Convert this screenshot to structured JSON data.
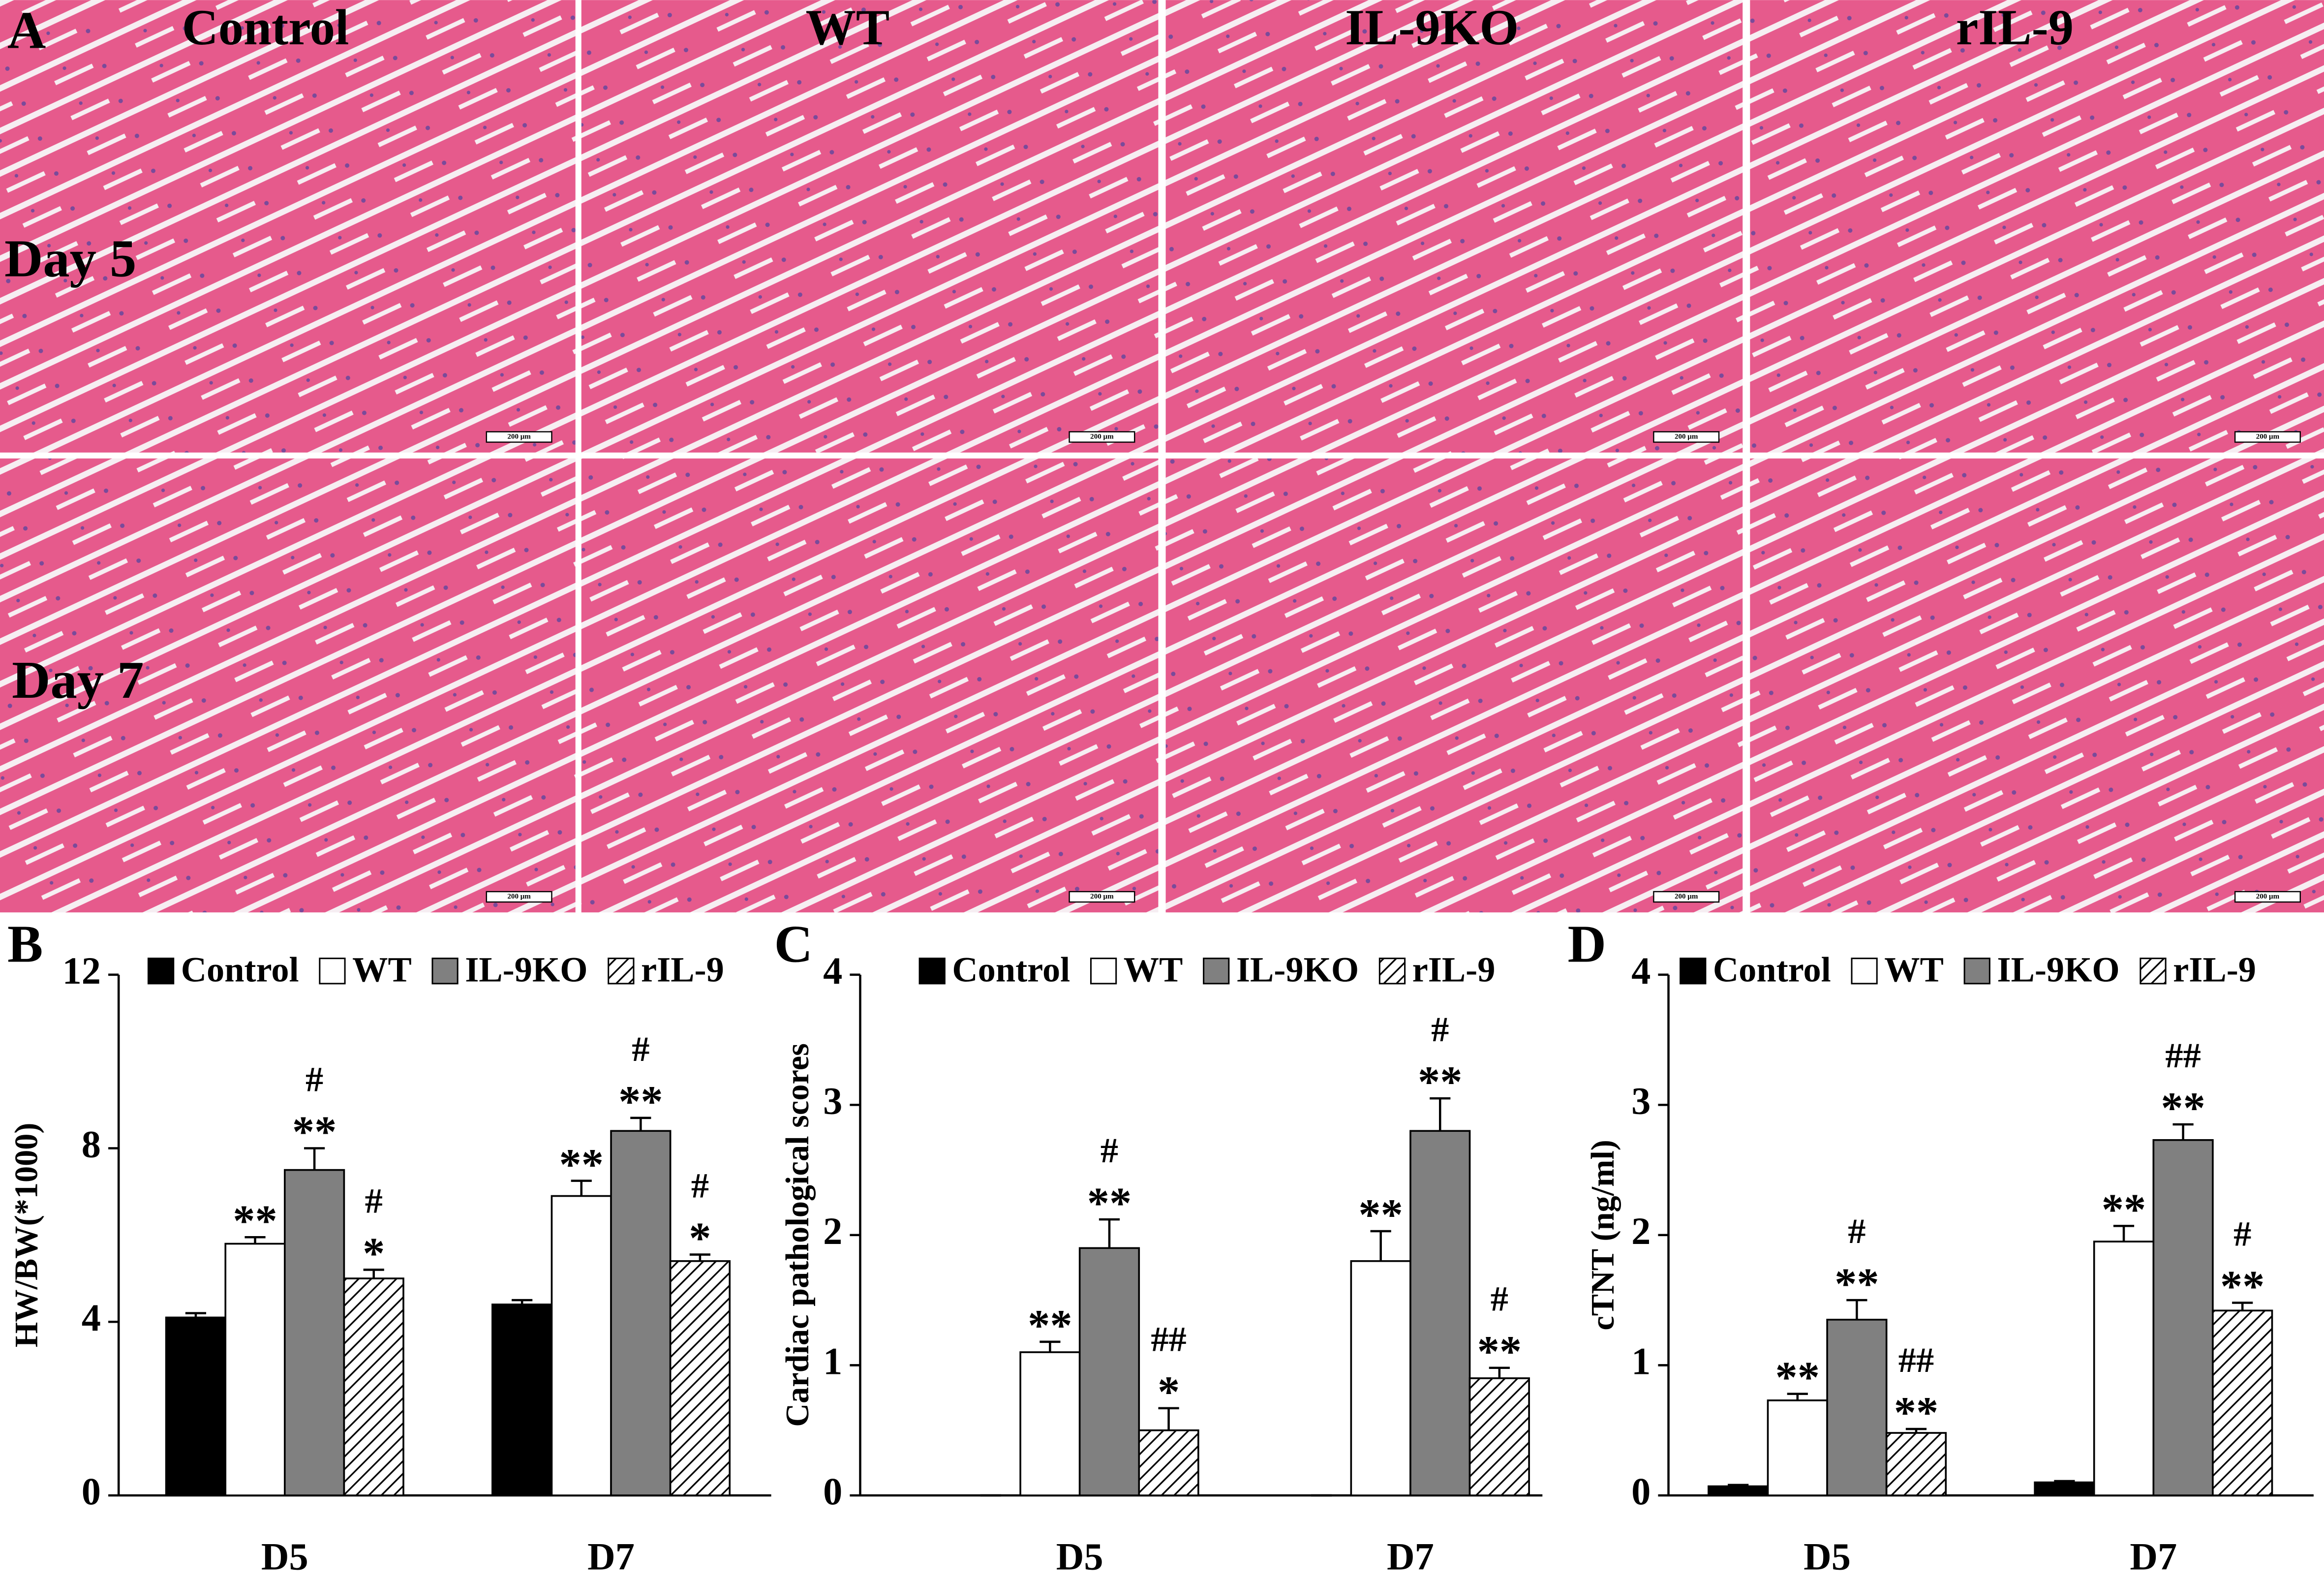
{
  "panel_a": {
    "label": "A",
    "columns": [
      "Control",
      "WT",
      "IL-9KO",
      "rIL-9"
    ],
    "rows": [
      "Day 5",
      "Day 7"
    ],
    "scale_bar": "200 μm"
  },
  "chart_data": [
    {
      "type": "bar",
      "panel_label": "B",
      "y_label": "HW/BW(*1000)",
      "categories": [
        "D5",
        "D7"
      ],
      "ylim": [
        0,
        12
      ],
      "yticks": [
        0,
        4,
        8,
        12
      ],
      "series": [
        {
          "name": "Control",
          "color": "#000000",
          "values": [
            4.1,
            4.4
          ],
          "errors": [
            0.1,
            0.1
          ],
          "annotations": [
            null,
            null
          ]
        },
        {
          "name": "WT",
          "color": "#ffffff",
          "values": [
            5.8,
            6.9
          ],
          "errors": [
            0.15,
            0.35
          ],
          "annotations": [
            [
              "**"
            ],
            [
              "**"
            ]
          ]
        },
        {
          "name": "IL-9KO",
          "color": "#808080",
          "values": [
            7.5,
            8.4
          ],
          "errors": [
            0.5,
            0.3
          ],
          "annotations": [
            [
              "#",
              "**"
            ],
            [
              "#",
              "**"
            ]
          ]
        },
        {
          "name": "rIL-9",
          "color": "#ffffff",
          "hatch": true,
          "values": [
            5.0,
            5.4
          ],
          "errors": [
            0.2,
            0.15
          ],
          "annotations": [
            [
              "#",
              "*"
            ],
            [
              "#",
              "*"
            ]
          ]
        }
      ]
    },
    {
      "type": "bar",
      "panel_label": "C",
      "y_label": "Cardiac pathological scores",
      "categories": [
        "D5",
        "D7"
      ],
      "ylim": [
        0,
        4
      ],
      "yticks": [
        0,
        1,
        2,
        3,
        4
      ],
      "series": [
        {
          "name": "Control",
          "color": "#000000",
          "values": [
            0,
            0
          ],
          "errors": [
            0,
            0
          ],
          "annotations": [
            null,
            null
          ]
        },
        {
          "name": "WT",
          "color": "#ffffff",
          "values": [
            1.1,
            1.8
          ],
          "errors": [
            0.08,
            0.23
          ],
          "annotations": [
            [
              "**"
            ],
            [
              "**"
            ]
          ]
        },
        {
          "name": "IL-9KO",
          "color": "#808080",
          "values": [
            1.9,
            2.8
          ],
          "errors": [
            0.22,
            0.25
          ],
          "annotations": [
            [
              "#",
              "**"
            ],
            [
              "#",
              "**"
            ]
          ]
        },
        {
          "name": "rIL-9",
          "color": "#ffffff",
          "hatch": true,
          "values": [
            0.5,
            0.9
          ],
          "errors": [
            0.17,
            0.08
          ],
          "annotations": [
            [
              "##",
              "*"
            ],
            [
              "#",
              "**"
            ]
          ]
        }
      ]
    },
    {
      "type": "bar",
      "panel_label": "D",
      "y_label": "cTNT (ng/ml)",
      "categories": [
        "D5",
        "D7"
      ],
      "ylim": [
        0,
        4
      ],
      "yticks": [
        0,
        1,
        2,
        3,
        4
      ],
      "series": [
        {
          "name": "Control",
          "color": "#000000",
          "values": [
            0.07,
            0.1
          ],
          "errors": [
            0.01,
            0.01
          ],
          "annotations": [
            null,
            null
          ]
        },
        {
          "name": "WT",
          "color": "#ffffff",
          "values": [
            0.73,
            1.95
          ],
          "errors": [
            0.05,
            0.12
          ],
          "annotations": [
            [
              "**"
            ],
            [
              "**"
            ]
          ]
        },
        {
          "name": "IL-9KO",
          "color": "#808080",
          "values": [
            1.35,
            2.73
          ],
          "errors": [
            0.15,
            0.12
          ],
          "annotations": [
            [
              "#",
              "**"
            ],
            [
              "##",
              "**"
            ]
          ]
        },
        {
          "name": "rIL-9",
          "color": "#ffffff",
          "hatch": true,
          "values": [
            0.48,
            1.42
          ],
          "errors": [
            0.03,
            0.06
          ],
          "annotations": [
            [
              "##",
              "**"
            ],
            [
              "#",
              "**"
            ]
          ]
        }
      ]
    }
  ]
}
